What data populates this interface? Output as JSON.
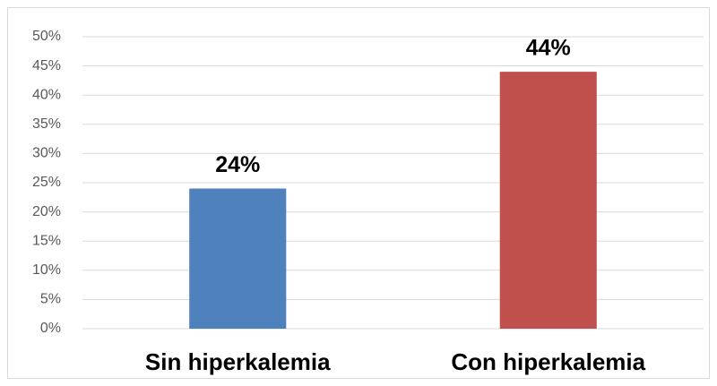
{
  "chart_data": {
    "type": "bar",
    "categories": [
      "Sin hiperkalemia",
      "Con hiperkalemia"
    ],
    "values": [
      24,
      44
    ],
    "value_labels": [
      "24%",
      "44%"
    ],
    "colors": [
      "#4f81bd",
      "#c0504d"
    ],
    "ylim": [
      0,
      50
    ],
    "yticks": [
      {
        "value": 0,
        "label": "0%"
      },
      {
        "value": 5,
        "label": "5%"
      },
      {
        "value": 10,
        "label": "10%"
      },
      {
        "value": 15,
        "label": "15%"
      },
      {
        "value": 20,
        "label": "20%"
      },
      {
        "value": 25,
        "label": "25%"
      },
      {
        "value": 30,
        "label": "30%"
      },
      {
        "value": 35,
        "label": "35%"
      },
      {
        "value": 40,
        "label": "40%"
      },
      {
        "value": 45,
        "label": "45%"
      },
      {
        "value": 50,
        "label": "50%"
      }
    ],
    "grid": true
  }
}
